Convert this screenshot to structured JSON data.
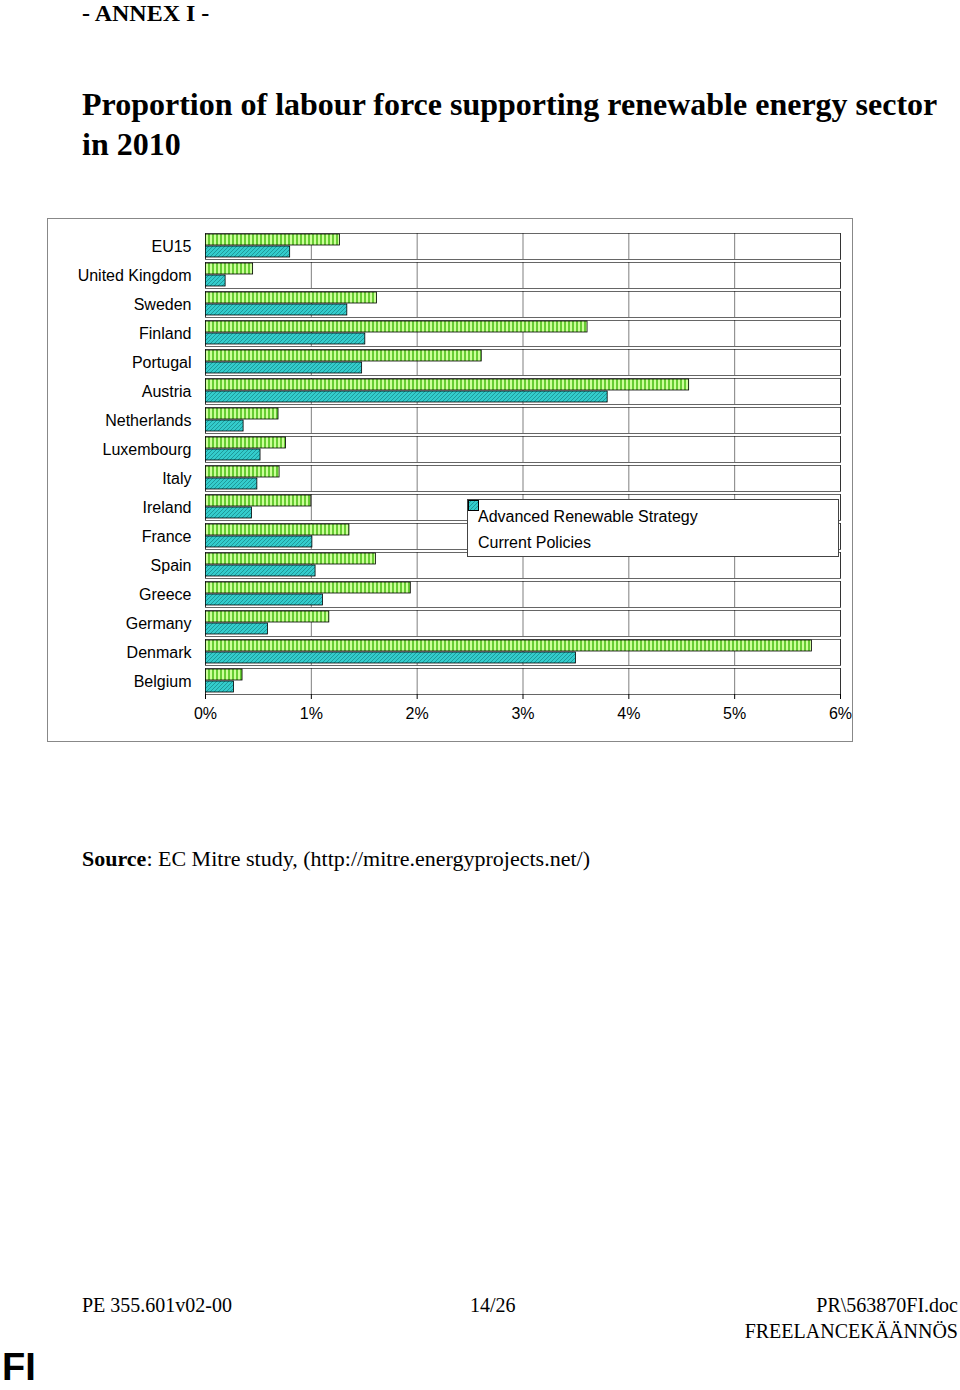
{
  "header": "- ANNEX I -",
  "chart_data": {
    "type": "bar",
    "title": "Proportion of labour force supporting renewable energy sector in 2010",
    "orientation": "horizontal",
    "categories": [
      "EU15",
      "United Kingdom",
      "Sweden",
      "Finland",
      "Portugal",
      "Austria",
      "Netherlands",
      "Luxembourg",
      "Italy",
      "Ireland",
      "France",
      "Spain",
      "Greece",
      "Germany",
      "Denmark",
      "Belgium"
    ],
    "series": [
      {
        "name": "Advanced Renewable Strategy",
        "color": "#66cc33",
        "values": [
          1.27,
          0.45,
          1.62,
          3.61,
          2.61,
          4.57,
          0.69,
          0.76,
          0.7,
          1.0,
          1.36,
          1.61,
          1.94,
          1.17,
          5.73,
          0.35
        ]
      },
      {
        "name": "Current Policies",
        "color": "#33cccc",
        "values": [
          0.8,
          0.19,
          1.34,
          1.51,
          1.48,
          3.8,
          0.36,
          0.52,
          0.49,
          0.44,
          1.01,
          1.04,
          1.11,
          0.59,
          3.5,
          0.27
        ]
      }
    ],
    "xlim": [
      0,
      6
    ],
    "xticks": [
      {
        "value": 0,
        "label": "0%"
      },
      {
        "value": 1,
        "label": "1%"
      },
      {
        "value": 2,
        "label": "2%"
      },
      {
        "value": 3,
        "label": "3%"
      },
      {
        "value": 4,
        "label": "4%"
      },
      {
        "value": 5,
        "label": "5%"
      },
      {
        "value": 6,
        "label": "6%"
      }
    ],
    "grid": true,
    "legend": "right"
  },
  "source_label": "Source",
  "source_text": ": EC Mitre study, (http://mitre.energyprojects.net/)",
  "footer": {
    "left": "PE 355.601v02-00",
    "center": "14/26",
    "right": "PR\\563870FI.doc",
    "right2": "FREELANCEKÄÄNNÖS",
    "language": "FI"
  }
}
